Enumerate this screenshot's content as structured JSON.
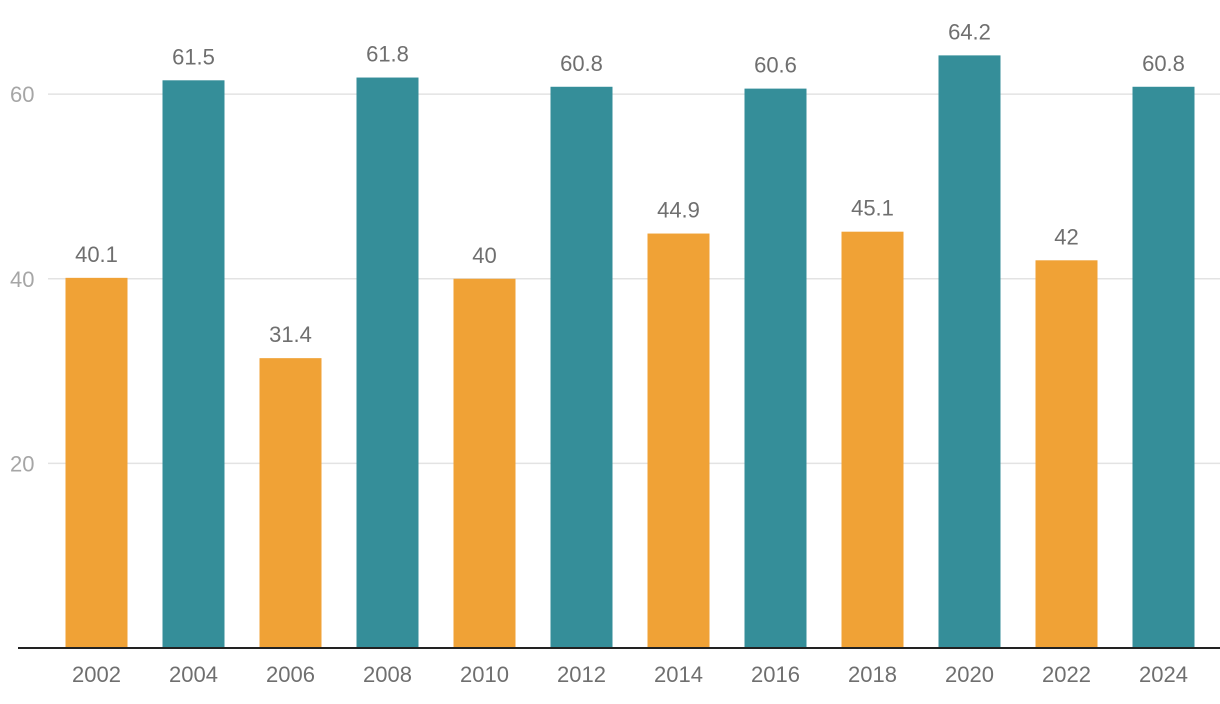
{
  "chart_data": {
    "type": "bar",
    "title": "",
    "xlabel": "",
    "ylabel": "",
    "categories": [
      "2002",
      "2004",
      "2006",
      "2008",
      "2010",
      "2012",
      "2014",
      "2016",
      "2018",
      "2020",
      "2022",
      "2024"
    ],
    "values": [
      40.1,
      61.5,
      31.4,
      61.8,
      40,
      60.8,
      44.9,
      60.6,
      45.1,
      64.2,
      42,
      60.8
    ],
    "value_labels": [
      "40.1",
      "61.5",
      "31.4",
      "61.8",
      "40",
      "60.8",
      "44.9",
      "60.6",
      "45.1",
      "64.2",
      "42",
      "60.8"
    ],
    "ylim": [
      0,
      65
    ],
    "yticks": [
      20,
      40,
      60
    ],
    "ytick_labels": [
      "20",
      "40",
      "60"
    ],
    "grid": true,
    "colors": {
      "midterm": "#f0a236",
      "presidential": "#358e99"
    },
    "bar_colors": [
      "#f0a236",
      "#358e99",
      "#f0a236",
      "#358e99",
      "#f0a236",
      "#358e99",
      "#f0a236",
      "#358e99",
      "#f0a236",
      "#358e99",
      "#f0a236",
      "#358e99"
    ]
  }
}
